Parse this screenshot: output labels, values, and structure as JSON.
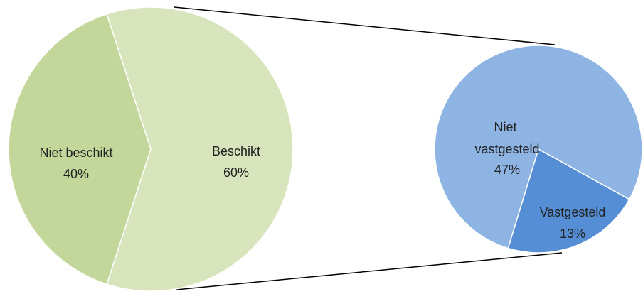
{
  "chart_data": {
    "type": "pie_of_pie",
    "pies": [
      {
        "categories": [
          "Niet beschikt",
          "Beschikt"
        ],
        "values": [
          40,
          60
        ],
        "value_labels": [
          "40%",
          "60%"
        ],
        "colors": [
          "#c4d79b",
          "#d8e4bc"
        ]
      },
      {
        "categories": [
          "Niet vastgesteld",
          "Vastgesteld"
        ],
        "values": [
          47,
          13
        ],
        "value_labels": [
          "47%",
          "13%"
        ],
        "colors": [
          "#8eb4e3",
          "#558ed5"
        ]
      }
    ]
  }
}
